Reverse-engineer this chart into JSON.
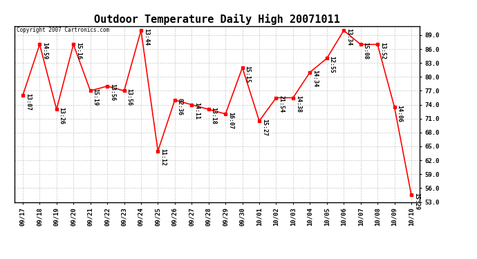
{
  "title": "Outdoor Temperature Daily High 20071011",
  "copyright_text": "Copyright 2007 Cartronics.com",
  "x_labels": [
    "09/17",
    "09/18",
    "09/19",
    "09/20",
    "09/21",
    "09/22",
    "09/23",
    "09/24",
    "09/25",
    "09/26",
    "09/27",
    "09/28",
    "09/29",
    "09/30",
    "10/01",
    "10/02",
    "10/03",
    "10/04",
    "10/05",
    "10/06",
    "10/07",
    "10/08",
    "10/09",
    "10/10"
  ],
  "y_values": [
    76.0,
    87.0,
    73.0,
    87.0,
    77.0,
    78.0,
    77.0,
    90.0,
    64.0,
    75.0,
    74.0,
    73.0,
    72.0,
    82.0,
    70.5,
    75.5,
    75.5,
    81.0,
    84.0,
    90.0,
    87.0,
    87.0,
    73.5,
    54.5
  ],
  "time_labels": [
    "13:07",
    "14:59",
    "13:26",
    "15:16",
    "15:19",
    "13:56",
    "13:56",
    "13:44",
    "11:12",
    "02:36",
    "14:11",
    "13:18",
    "16:07",
    "15:15",
    "15:27",
    "21:54",
    "14:38",
    "14:34",
    "12:55",
    "13:34",
    "15:08",
    "13:52",
    "14:06",
    "15:29"
  ],
  "ylim": [
    53.0,
    91.0
  ],
  "yticks": [
    53.0,
    56.0,
    59.0,
    62.0,
    65.0,
    68.0,
    71.0,
    74.0,
    77.0,
    80.0,
    83.0,
    86.0,
    89.0
  ],
  "line_color": "#ff0000",
  "marker_color": "#ff0000",
  "bg_color": "#ffffff",
  "grid_color": "#c8c8c8",
  "title_fontsize": 11,
  "label_fontsize": 6.5,
  "annotation_fontsize": 6,
  "figsize": [
    6.9,
    3.75
  ]
}
